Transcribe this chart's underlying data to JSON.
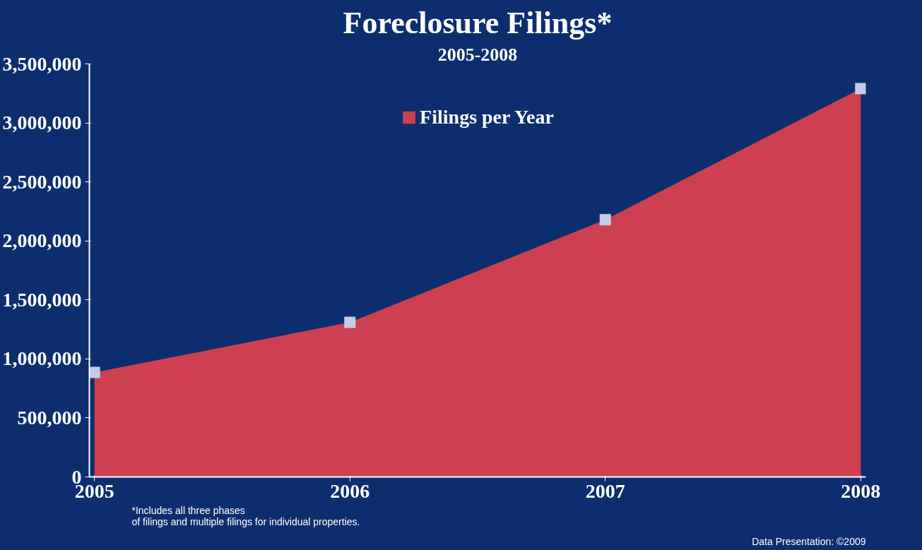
{
  "chart_data": {
    "type": "area",
    "title": "Foreclosure Filings*",
    "subtitle": "2005-2008",
    "categories": [
      "2005",
      "2006",
      "2007",
      "2008"
    ],
    "series": [
      {
        "name": "Filings per Year",
        "color": "#d9414f",
        "values": [
          885000,
          1310000,
          2180000,
          3290000
        ]
      }
    ],
    "marker": "square",
    "ylim": [
      0,
      3500000
    ],
    "yticks": [
      {
        "value": 0,
        "label": "0"
      },
      {
        "value": 500000,
        "label": "500,000"
      },
      {
        "value": 1000000,
        "label": "1,000,000"
      },
      {
        "value": 1500000,
        "label": "1,500,000"
      },
      {
        "value": 2000000,
        "label": "2,000,000"
      },
      {
        "value": 2500000,
        "label": "2,500,000"
      },
      {
        "value": 3000000,
        "label": "3,000,000"
      },
      {
        "value": 3500000,
        "label": "3,500,000"
      }
    ],
    "grid": false,
    "legend": "top",
    "annotations": [
      "*Includes all three phases\nof filings and multiple filings for individual properties.",
      "Data Presentation: ©2009"
    ]
  }
}
